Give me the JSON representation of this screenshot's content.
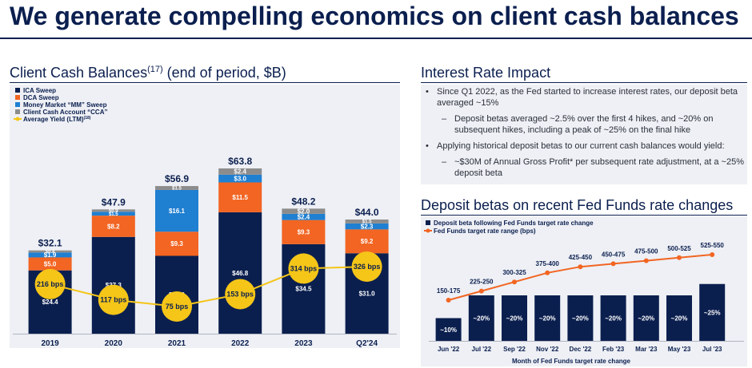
{
  "title": "We generate compelling economics on client cash balances",
  "left_panel": {
    "heading": "Client Cash Balances",
    "heading_sup": "(17)",
    "heading_suffix": " (end of period, $B)",
    "legend": [
      "ICA Sweep",
      "DCA Sweep",
      "Money Market “MM” Sweep",
      "Client Cash Account “CCA”",
      "Average Yield (LTM)"
    ],
    "legend_yield_sup": "(18)"
  },
  "interest_panel": {
    "heading": "Interest Rate Impact",
    "bullet1": "Since Q1 2022, as the Fed started to increase interest rates, our deposit beta averaged ~15%",
    "sub1": "Deposit betas averaged ~2.5% over the first 4 hikes, and ~20% on subsequent hikes, including a peak of ~25% on the final hike",
    "bullet2": "Applying historical deposit betas to our current cash balances would yield:",
    "sub2": "~$30M of Annual Gross Profit* per subsequent rate adjustment, at a ~25% deposit beta"
  },
  "beta_panel": {
    "heading": "Deposit betas on recent Fed Funds rate changes",
    "legend_bars": "Deposit beta following Fed Funds target rate change",
    "legend_line": "Fed Funds target rate range (bps)"
  },
  "colors": {
    "navy": "#0b1f4f",
    "ica": "#0b1f4f",
    "dca": "#f26522",
    "mm": "#1f7fd1",
    "cca": "#8c8c8c",
    "yield": "#f5c518",
    "rate_line": "#f26522",
    "panel_bg": "#eef0f5"
  },
  "chart_data": [
    {
      "type": "bar",
      "stacked": true,
      "categories": [
        "2019",
        "2020",
        "2021",
        "2022",
        "2023",
        "Q2'24"
      ],
      "series": [
        {
          "name": "ICA Sweep",
          "values": [
            24.4,
            37.3,
            30.0,
            46.8,
            34.5,
            31.0
          ],
          "labels": [
            "$24.4",
            "$37.3",
            "$30.0",
            "$46.8",
            "$34.5",
            "$31.0"
          ]
        },
        {
          "name": "DCA Sweep",
          "values": [
            5.0,
            8.2,
            9.3,
            11.5,
            9.3,
            9.2
          ],
          "labels": [
            "$5.0",
            "$8.2",
            "$9.3",
            "$11.5",
            "$9.3",
            "$9.2"
          ]
        },
        {
          "name": "Money Market “MM” Sweep",
          "values": [
            1.9,
            1.5,
            16.1,
            3.0,
            2.4,
            2.3
          ],
          "labels": [
            "$1.9",
            "$1.5",
            "$16.1",
            "$3.0",
            "$2.4",
            "$2.3"
          ]
        },
        {
          "name": "Client Cash Account “CCA”",
          "values": [
            0.8,
            0.9,
            1.5,
            2.4,
            2.0,
            1.5
          ],
          "labels": [
            "$0.8",
            "$0.9",
            "$1.5",
            "$2.4",
            "$2.0",
            "$1.5"
          ]
        }
      ],
      "totals": [
        "$32.1",
        "$47.9",
        "$56.9",
        "$63.8",
        "$48.2",
        "$44.0"
      ],
      "total_values": [
        32.1,
        47.9,
        56.9,
        63.8,
        48.2,
        44.0
      ],
      "line": {
        "name": "Average Yield (LTM)",
        "values": [
          216,
          117,
          75,
          153,
          314,
          326
        ],
        "labels": [
          "216 bps",
          "117 bps",
          "75 bps",
          "153 bps",
          "314 bps",
          "326 bps"
        ]
      }
    },
    {
      "type": "bar",
      "categories": [
        "Jun '22",
        "Jul '22",
        "Sep '22",
        "Nov '22",
        "Dec '22",
        "Feb '23",
        "Mar '23",
        "May '23",
        "Jul '23"
      ],
      "xlabel": "Month of Fed Funds target rate change",
      "series": [
        {
          "name": "Deposit beta following Fed Funds target rate change",
          "values": [
            10,
            20,
            20,
            20,
            20,
            20,
            20,
            20,
            25
          ],
          "labels": [
            "~10%",
            "~20%",
            "~20%",
            "~20%",
            "~20%",
            "~20%",
            "~20%",
            "~20%",
            "~25%"
          ]
        }
      ],
      "line": {
        "name": "Fed Funds target rate range (bps)",
        "values": [
          175,
          250,
          325,
          400,
          450,
          475,
          500,
          525,
          550
        ],
        "labels": [
          "150-175",
          "225-250",
          "300-325",
          "375-400",
          "425-450",
          "450-475",
          "475-500",
          "500-525",
          "525-550"
        ]
      }
    }
  ]
}
